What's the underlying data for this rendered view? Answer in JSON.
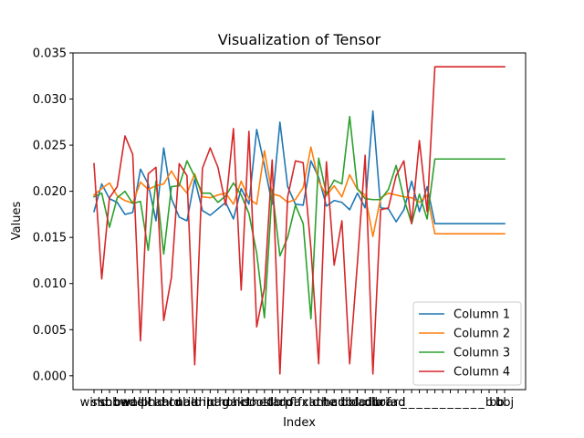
{
  "chart_data": {
    "type": "line",
    "title": "Visualization of Tensor",
    "xlabel": "Index",
    "ylabel": "Values",
    "ylim": [
      -0.0015,
      0.035
    ],
    "yticks": [
      "0.000",
      "0.005",
      "0.010",
      "0.015",
      "0.020",
      "0.025",
      "0.030",
      "0.035"
    ],
    "ytick_values": [
      0,
      0.005,
      0.01,
      0.015,
      0.02,
      0.025,
      0.03,
      0.035
    ],
    "grid": false,
    "legend_position": "lower-right",
    "x_count": 54,
    "x_tick_labels_visible": [
      "wind",
      "shb",
      "sho",
      "bbw",
      "bad",
      "wall",
      "cell",
      "ph",
      "cld",
      "ahl",
      "ard",
      "cub",
      "nad",
      "ild",
      "anp",
      "ild",
      "nag",
      "ho",
      "dak",
      "his",
      "do",
      "the",
      "osl",
      "ldb",
      "tarp",
      "dol",
      "fa",
      "fx",
      "cld",
      "ant",
      "the",
      "had",
      "cub",
      "bld",
      "olo",
      "ladl",
      "dib",
      "uri",
      "hoard",
      "fad",
      "_",
      "_",
      "_",
      "_",
      "_",
      "_",
      "_",
      "_",
      "_",
      "_",
      "_",
      "b",
      "bb",
      "bbj"
    ],
    "series": [
      {
        "name": "Column 1",
        "color": "#1f77b4",
        "values": [
          0.0178,
          0.0208,
          0.0192,
          0.0188,
          0.0175,
          0.0177,
          0.0224,
          0.0208,
          0.0168,
          0.0247,
          0.0192,
          0.0172,
          0.0168,
          0.0213,
          0.0179,
          0.0174,
          0.0181,
          0.0188,
          0.017,
          0.0203,
          0.0186,
          0.0267,
          0.0228,
          0.0186,
          0.0275,
          0.0205,
          0.0186,
          0.0185,
          0.0233,
          0.0215,
          0.0184,
          0.019,
          0.0188,
          0.018,
          0.0198,
          0.0182,
          0.0287,
          0.0182,
          0.0181,
          0.0167,
          0.018,
          0.0211,
          0.0178,
          0.0205,
          0.0165,
          0.0165,
          0.0165,
          0.0165,
          0.0165,
          0.0165,
          0.0165,
          0.0165,
          0.0165,
          0.0165
        ]
      },
      {
        "name": "Column 2",
        "color": "#ff7f0e",
        "values": [
          0.0196,
          0.0203,
          0.0209,
          0.0195,
          0.019,
          0.0187,
          0.021,
          0.0202,
          0.0206,
          0.0208,
          0.0222,
          0.0208,
          0.0198,
          0.0219,
          0.0194,
          0.0193,
          0.0196,
          0.0198,
          0.0186,
          0.0211,
          0.0192,
          0.0186,
          0.0244,
          0.0197,
          0.0195,
          0.0188,
          0.0191,
          0.0204,
          0.0248,
          0.0211,
          0.0195,
          0.0206,
          0.0194,
          0.0218,
          0.0202,
          0.0196,
          0.0151,
          0.0193,
          0.0198,
          0.0196,
          0.0194,
          0.0193,
          0.0188,
          0.0196,
          0.0154,
          0.0154,
          0.0154,
          0.0154,
          0.0154,
          0.0154,
          0.0154,
          0.0154,
          0.0154,
          0.0154
        ]
      },
      {
        "name": "Column 3",
        "color": "#2ca02c",
        "values": [
          0.0194,
          0.0198,
          0.0161,
          0.0193,
          0.02,
          0.0187,
          0.0189,
          0.0136,
          0.0211,
          0.0132,
          0.0205,
          0.0206,
          0.0233,
          0.0216,
          0.0198,
          0.0198,
          0.0188,
          0.0195,
          0.0209,
          0.0196,
          0.0176,
          0.0133,
          0.0063,
          0.0202,
          0.013,
          0.015,
          0.0185,
          0.0165,
          0.0062,
          0.0236,
          0.0197,
          0.0212,
          0.0208,
          0.0281,
          0.0203,
          0.0192,
          0.0191,
          0.0191,
          0.0202,
          0.0228,
          0.0192,
          0.0165,
          0.0197,
          0.017,
          0.0235,
          0.0235,
          0.0235,
          0.0235,
          0.0235,
          0.0235,
          0.0235,
          0.0235,
          0.0235,
          0.0235
        ]
      },
      {
        "name": "Column 4",
        "color": "#d62728",
        "values": [
          0.023,
          0.0105,
          0.0193,
          0.0205,
          0.026,
          0.024,
          0.0038,
          0.0219,
          0.0226,
          0.006,
          0.0107,
          0.023,
          0.0217,
          0.0012,
          0.0225,
          0.0247,
          0.0226,
          0.0185,
          0.0268,
          0.0093,
          0.0265,
          0.0053,
          0.0095,
          0.0234,
          0.0002,
          0.0194,
          0.0233,
          0.0231,
          0.0138,
          0.0013,
          0.0232,
          0.012,
          0.0168,
          0.0013,
          0.0122,
          0.0239,
          0.0002,
          0.018,
          0.0182,
          0.0217,
          0.0233,
          0.0165,
          0.0255,
          0.0178,
          0.0335,
          0.0335,
          0.0335,
          0.0335,
          0.0335,
          0.0335,
          0.0335,
          0.0335,
          0.0335,
          0.0335
        ]
      }
    ]
  }
}
